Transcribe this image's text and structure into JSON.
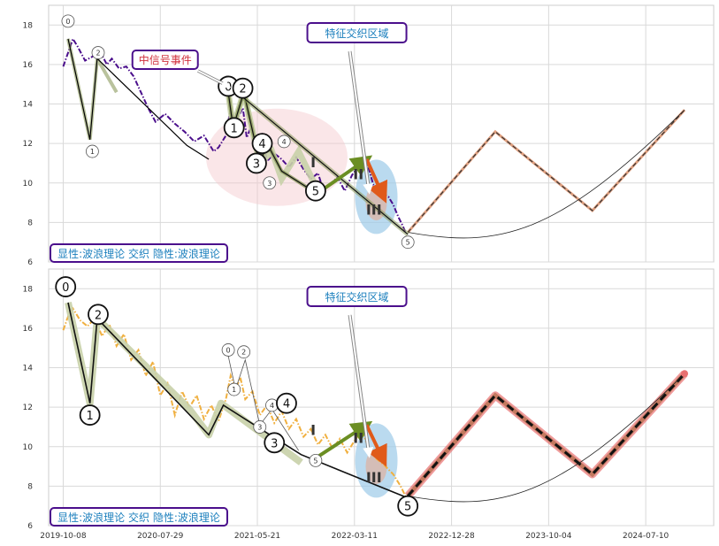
{
  "chart_data": [
    {
      "type": "line",
      "panel": "top",
      "ylim": [
        6,
        19
      ],
      "yticks": [
        6,
        8,
        10,
        12,
        14,
        16,
        18
      ],
      "grid": true,
      "price_color": "#4b0f8c",
      "price_style": "dash-dot",
      "price_series": [
        [
          0.0,
          15.9
        ],
        [
          0.1,
          16.6
        ],
        [
          0.2,
          17.3
        ],
        [
          0.3,
          16.9
        ],
        [
          0.45,
          16.2
        ],
        [
          0.6,
          16.4
        ],
        [
          0.75,
          16.7
        ],
        [
          0.9,
          16.0
        ],
        [
          1.0,
          16.3
        ],
        [
          1.15,
          15.8
        ],
        [
          1.3,
          15.9
        ],
        [
          1.45,
          15.4
        ],
        [
          1.6,
          14.6
        ],
        [
          1.75,
          13.8
        ],
        [
          1.9,
          13.1
        ],
        [
          2.1,
          13.5
        ],
        [
          2.3,
          13.0
        ],
        [
          2.5,
          12.6
        ],
        [
          2.7,
          12.1
        ],
        [
          2.9,
          12.4
        ],
        [
          3.1,
          11.6
        ],
        [
          3.2,
          11.8
        ],
        [
          3.35,
          12.4
        ],
        [
          3.45,
          13.8
        ],
        [
          3.55,
          13.0
        ],
        [
          3.62,
          13.4
        ],
        [
          3.7,
          13.8
        ],
        [
          3.78,
          12.3
        ],
        [
          3.88,
          12.9
        ],
        [
          4.0,
          11.8
        ],
        [
          4.1,
          12.4
        ],
        [
          4.2,
          11.1
        ],
        [
          4.35,
          11.5
        ],
        [
          4.5,
          11.2
        ],
        [
          4.65,
          10.8
        ],
        [
          4.8,
          11.3
        ],
        [
          4.95,
          10.7
        ],
        [
          5.1,
          10.2
        ],
        [
          5.25,
          10.5
        ],
        [
          5.35,
          9.7
        ],
        [
          5.5,
          9.9
        ],
        [
          5.65,
          10.3
        ],
        [
          5.8,
          9.6
        ],
        [
          5.95,
          10.4
        ],
        [
          6.1,
          10.9
        ],
        [
          6.25,
          11.1
        ],
        [
          6.32,
          10.5
        ],
        [
          6.4,
          9.8
        ],
        [
          6.55,
          9.5
        ],
        [
          6.7,
          9.3
        ],
        [
          6.8,
          8.9
        ],
        [
          6.9,
          8.3
        ],
        [
          7.0,
          7.8
        ],
        [
          7.05,
          7.5
        ]
      ],
      "wave_lines": [
        {
          "points": [
            [
              0.1,
              17.3
            ],
            [
              0.55,
              12.2
            ],
            [
              0.7,
              16.3
            ],
            [
              1.1,
              14.6
            ]
          ],
          "color": "#8b9a5b",
          "width": 2
        },
        {
          "points": [
            [
              0.1,
              17.3
            ],
            [
              0.55,
              12.2
            ],
            [
              0.7,
              16.3
            ],
            [
              2.55,
              11.9
            ],
            [
              3.0,
              11.2
            ]
          ],
          "color": "#000000",
          "width": 1.2
        }
      ],
      "mid_wave_light": [
        [
          3.4,
          14.6
        ],
        [
          3.5,
          12.8
        ],
        [
          3.72,
          14.6
        ],
        [
          4.05,
          11.0
        ],
        [
          4.3,
          11.6
        ],
        [
          4.5,
          10.2
        ],
        [
          4.85,
          11.6
        ],
        [
          5.25,
          9.6
        ]
      ],
      "mid_wave_bold": [
        [
          3.4,
          14.6
        ],
        [
          3.5,
          12.8
        ],
        [
          3.72,
          14.6
        ],
        [
          4.05,
          11.0
        ],
        [
          4.2,
          12.0
        ],
        [
          4.5,
          10.6
        ],
        [
          5.2,
          9.5
        ]
      ],
      "down_trend": [
        [
          3.72,
          14.3
        ],
        [
          7.1,
          7.4
        ]
      ],
      "green_arrow": [
        [
          5.25,
          9.5
        ],
        [
          6.25,
          11.2
        ]
      ],
      "orange_arrow": [
        [
          6.25,
          11.2
        ],
        [
          6.6,
          9.3
        ]
      ],
      "projection": [
        [
          7.1,
          7.5
        ],
        [
          8.9,
          12.6
        ],
        [
          10.9,
          8.6
        ],
        [
          12.8,
          13.7
        ]
      ],
      "projection_color": "#e0a080",
      "arc": [
        [
          7.1,
          7.5
        ],
        [
          9.0,
          7.2
        ],
        [
          10.9,
          8.7
        ],
        [
          12.8,
          13.7
        ]
      ],
      "labels_small": [
        {
          "text": "0",
          "x": 0.1,
          "y": 18.2
        },
        {
          "text": "1",
          "x": 0.6,
          "y": 11.6
        },
        {
          "text": "2",
          "x": 0.72,
          "y": 16.6
        },
        {
          "text": "3",
          "x": 4.25,
          "y": 10.0
        },
        {
          "text": "4",
          "x": 4.55,
          "y": 12.1
        },
        {
          "text": "5",
          "x": 7.1,
          "y": 7.0
        }
      ],
      "labels_big": [
        {
          "text": "0",
          "x": 3.4,
          "y": 14.9
        },
        {
          "text": "1",
          "x": 3.52,
          "y": 12.8
        },
        {
          "text": "2",
          "x": 3.7,
          "y": 14.8
        },
        {
          "text": "3",
          "x": 3.98,
          "y": 11.0
        },
        {
          "text": "4",
          "x": 4.1,
          "y": 12.0
        },
        {
          "text": "5",
          "x": 5.2,
          "y": 9.6
        }
      ],
      "roman": [
        {
          "text": "I",
          "x": 5.15,
          "y": 10.8
        },
        {
          "text": "II",
          "x": 6.08,
          "y": 10.2
        },
        {
          "text": "III",
          "x": 6.4,
          "y": 8.4
        }
      ],
      "annot_box": {
        "text": "特征交织区域"
      },
      "signal_box": {
        "text": "中信号事件"
      },
      "bottom_box": {
        "text": "显性:波浪理论 交织 隐性:波浪理论"
      }
    },
    {
      "type": "line",
      "panel": "bottom",
      "ylim": [
        6,
        19
      ],
      "yticks": [
        6,
        8,
        10,
        12,
        14,
        16,
        18
      ],
      "grid": true,
      "price_color": "#f0b040",
      "price_style": "dash-dot",
      "price_series": [
        [
          0.0,
          15.9
        ],
        [
          0.1,
          16.6
        ],
        [
          0.2,
          17.0
        ],
        [
          0.35,
          16.4
        ],
        [
          0.5,
          16.1
        ],
        [
          0.65,
          16.5
        ],
        [
          0.8,
          15.6
        ],
        [
          0.95,
          16.2
        ],
        [
          1.1,
          15.1
        ],
        [
          1.25,
          15.7
        ],
        [
          1.4,
          14.4
        ],
        [
          1.55,
          14.9
        ],
        [
          1.7,
          13.6
        ],
        [
          1.85,
          14.3
        ],
        [
          2.0,
          12.6
        ],
        [
          2.15,
          13.2
        ],
        [
          2.3,
          11.6
        ],
        [
          2.45,
          12.8
        ],
        [
          2.6,
          12.0
        ],
        [
          2.75,
          12.6
        ],
        [
          2.9,
          11.4
        ],
        [
          3.05,
          12.1
        ],
        [
          3.2,
          11.3
        ],
        [
          3.35,
          12.4
        ],
        [
          3.45,
          13.6
        ],
        [
          3.55,
          12.9
        ],
        [
          3.65,
          13.5
        ],
        [
          3.75,
          12.4
        ],
        [
          3.9,
          12.8
        ],
        [
          4.05,
          11.6
        ],
        [
          4.2,
          12.1
        ],
        [
          4.35,
          11.2
        ],
        [
          4.5,
          11.8
        ],
        [
          4.65,
          10.9
        ],
        [
          4.8,
          11.4
        ],
        [
          4.95,
          10.5
        ],
        [
          5.1,
          10.9
        ],
        [
          5.25,
          10.1
        ],
        [
          5.4,
          10.6
        ],
        [
          5.55,
          9.9
        ],
        [
          5.7,
          10.4
        ],
        [
          5.85,
          9.7
        ],
        [
          6.0,
          10.3
        ],
        [
          6.15,
          10.8
        ],
        [
          6.3,
          9.9
        ],
        [
          6.45,
          9.4
        ],
        [
          6.6,
          9.1
        ],
        [
          6.8,
          8.6
        ],
        [
          6.95,
          8.0
        ],
        [
          7.05,
          7.5
        ]
      ],
      "wave_light": [
        [
          0.1,
          17.3
        ],
        [
          0.55,
          12.2
        ],
        [
          0.7,
          16.5
        ],
        [
          2.6,
          11.9
        ],
        [
          3.0,
          10.6
        ],
        [
          3.25,
          12.2
        ],
        [
          4.9,
          9.2
        ]
      ],
      "wave_bold": [
        [
          0.1,
          17.3
        ],
        [
          0.55,
          12.2
        ],
        [
          0.7,
          16.5
        ],
        [
          3.0,
          10.6
        ],
        [
          3.3,
          12.1
        ],
        [
          4.9,
          9.6
        ],
        [
          7.1,
          7.4
        ]
      ],
      "mini_wave": [
        [
          3.4,
          14.6
        ],
        [
          3.55,
          12.9
        ],
        [
          3.75,
          14.4
        ],
        [
          4.05,
          11.1
        ],
        [
          4.3,
          11.9
        ],
        [
          4.85,
          9.8
        ]
      ],
      "green_arrow": [
        [
          5.25,
          9.5
        ],
        [
          6.25,
          11.1
        ]
      ],
      "orange_arrow": [
        [
          6.25,
          11.1
        ],
        [
          6.6,
          9.3
        ]
      ],
      "projection_glow_color": "#e87070",
      "projection": [
        [
          7.1,
          7.5
        ],
        [
          8.9,
          12.6
        ],
        [
          10.9,
          8.6
        ],
        [
          12.8,
          13.7
        ]
      ],
      "arc": [
        [
          7.1,
          7.5
        ],
        [
          9.0,
          7.2
        ],
        [
          10.9,
          8.7
        ],
        [
          12.8,
          13.7
        ]
      ],
      "labels_small": [
        {
          "text": "0",
          "x": 3.4,
          "y": 14.9
        },
        {
          "text": "1",
          "x": 3.52,
          "y": 12.9
        },
        {
          "text": "2",
          "x": 3.72,
          "y": 14.8
        },
        {
          "text": "3",
          "x": 4.05,
          "y": 11.0
        },
        {
          "text": "4",
          "x": 4.3,
          "y": 12.1
        },
        {
          "text": "5",
          "x": 5.2,
          "y": 9.3
        }
      ],
      "labels_big": [
        {
          "text": "0",
          "x": 0.05,
          "y": 18.1
        },
        {
          "text": "1",
          "x": 0.55,
          "y": 11.6
        },
        {
          "text": "2",
          "x": 0.72,
          "y": 16.7
        },
        {
          "text": "3",
          "x": 4.35,
          "y": 10.2
        },
        {
          "text": "4",
          "x": 4.6,
          "y": 12.2
        },
        {
          "text": "5",
          "x": 7.1,
          "y": 7.0
        }
      ],
      "roman": [
        {
          "text": "I",
          "x": 5.15,
          "y": 10.6
        },
        {
          "text": "II",
          "x": 6.08,
          "y": 10.2
        },
        {
          "text": "III",
          "x": 6.4,
          "y": 8.2
        }
      ],
      "annot_box": {
        "text": "特征交织区域"
      },
      "bottom_box": {
        "text": "显性:波浪理论 交织 隐性:波浪理论"
      }
    }
  ],
  "x_axis": {
    "ticks": [
      "2019-10-08",
      "2020-07-29",
      "2021-05-21",
      "2022-03-11",
      "2022-12-28",
      "2023-10-04",
      "2024-07-10"
    ],
    "range": [
      -0.3,
      13.4
    ]
  },
  "colors": {
    "wave_green": "#8b9a5b",
    "wave_light": "#c8d0a8",
    "green_arrow": "#6b8e23",
    "orange_arrow": "#e05a1a",
    "blue_glow": "#9ccbe8",
    "pink_glow": "#f4c8cc",
    "box_border": "#4b0f8c",
    "box_text_blue": "#1b7fbd",
    "box_text_red": "#d0303c"
  }
}
